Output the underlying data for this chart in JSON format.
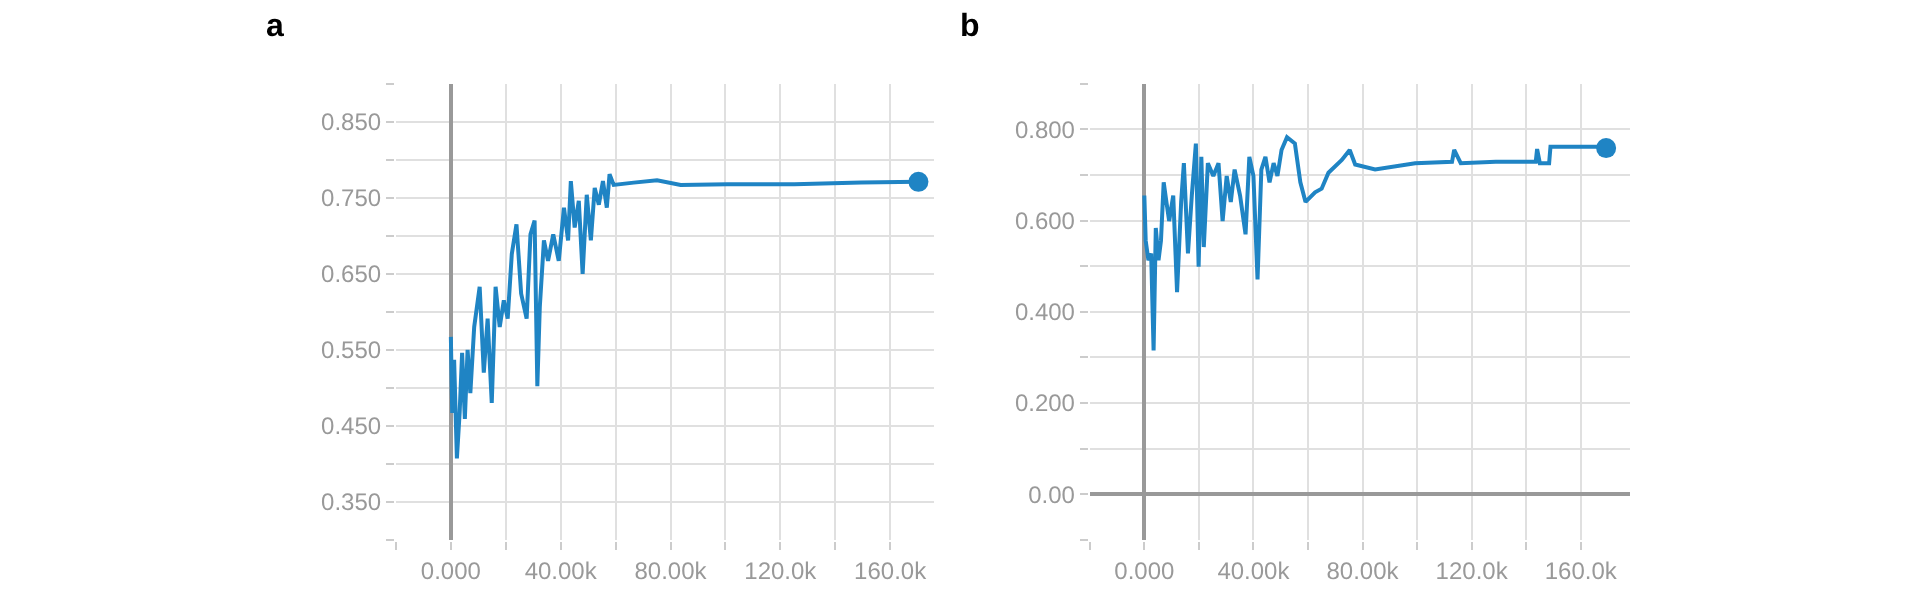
{
  "chart_data": [
    {
      "type": "line",
      "title": "a",
      "grid": true,
      "legend": false,
      "marker": "none",
      "line_style": "solid",
      "xlim": [
        -20000,
        176000
      ],
      "xticks": [
        {
          "value": -20000,
          "label": null
        },
        {
          "value": 0,
          "label": "0.000"
        },
        {
          "value": 20000,
          "label": null
        },
        {
          "value": 40000,
          "label": "40.00k"
        },
        {
          "value": 60000,
          "label": null
        },
        {
          "value": 80000,
          "label": "80.00k"
        },
        {
          "value": 100000,
          "label": null
        },
        {
          "value": 120000,
          "label": "120.0k"
        },
        {
          "value": 140000,
          "label": null
        },
        {
          "value": 160000,
          "label": "160.0k"
        }
      ],
      "ylim": [
        0.3,
        0.9
      ],
      "yticks": [
        {
          "value": 0.3,
          "label": null
        },
        {
          "value": 0.35,
          "label": "0.350"
        },
        {
          "value": 0.4,
          "label": null
        },
        {
          "value": 0.45,
          "label": "0.450"
        },
        {
          "value": 0.5,
          "label": null
        },
        {
          "value": 0.55,
          "label": "0.550"
        },
        {
          "value": 0.6,
          "label": null
        },
        {
          "value": 0.65,
          "label": "0.650"
        },
        {
          "value": 0.7,
          "label": null
        },
        {
          "value": 0.75,
          "label": "0.750"
        },
        {
          "value": 0.8,
          "label": null
        },
        {
          "value": 0.85,
          "label": "0.850"
        },
        {
          "value": 0.9,
          "label": null
        }
      ],
      "series": [
        {
          "color": "#1f84c4",
          "x": [
            0,
            500,
            1200,
            2200,
            3200,
            4100,
            5100,
            6100,
            7100,
            8500,
            10500,
            12000,
            13400,
            14900,
            16300,
            17800,
            19300,
            20700,
            22200,
            23900,
            25600,
            27600,
            29000,
            30500,
            31500,
            32400,
            33900,
            35400,
            37300,
            39300,
            41200,
            42700,
            43700,
            45100,
            46600,
            48000,
            49500,
            51000,
            52400,
            53900,
            55400,
            56800,
            57800,
            59300,
            66600,
            75100,
            83700,
            100700,
            125100,
            149500,
            170300
          ],
          "values": [
            0.567,
            0.467,
            0.537,
            0.407,
            0.467,
            0.546,
            0.459,
            0.55,
            0.493,
            0.58,
            0.633,
            0.52,
            0.591,
            0.48,
            0.633,
            0.58,
            0.615,
            0.591,
            0.676,
            0.715,
            0.624,
            0.591,
            0.702,
            0.72,
            0.502,
            0.607,
            0.694,
            0.667,
            0.702,
            0.667,
            0.737,
            0.694,
            0.772,
            0.711,
            0.746,
            0.65,
            0.754,
            0.694,
            0.763,
            0.741,
            0.772,
            0.737,
            0.781,
            0.767,
            0.77,
            0.773,
            0.767,
            0.768,
            0.768,
            0.77,
            0.771
          ]
        },
        {
          "type": "scatter",
          "marker": "circle",
          "color": "#1f84c4",
          "x": [
            170300
          ],
          "values": [
            0.771
          ]
        }
      ]
    },
    {
      "type": "line",
      "title": "b",
      "grid": true,
      "legend": false,
      "marker": "none",
      "line_style": "solid",
      "xlim": [
        -20000,
        178000
      ],
      "xticks": [
        {
          "value": -20000,
          "label": null
        },
        {
          "value": 0,
          "label": "0.000"
        },
        {
          "value": 20000,
          "label": null
        },
        {
          "value": 40000,
          "label": "40.00k"
        },
        {
          "value": 60000,
          "label": null
        },
        {
          "value": 80000,
          "label": "80.00k"
        },
        {
          "value": 100000,
          "label": null
        },
        {
          "value": 120000,
          "label": "120.0k"
        },
        {
          "value": 140000,
          "label": null
        },
        {
          "value": 160000,
          "label": "160.0k"
        }
      ],
      "ylim": [
        -0.1,
        0.9
      ],
      "yticks": [
        {
          "value": -0.1,
          "label": null
        },
        {
          "value": 0,
          "label": "0.00"
        },
        {
          "value": 0.1,
          "label": null
        },
        {
          "value": 0.2,
          "label": "0.200"
        },
        {
          "value": 0.3,
          "label": null
        },
        {
          "value": 0.4,
          "label": "0.400"
        },
        {
          "value": 0.5,
          "label": null
        },
        {
          "value": 0.6,
          "label": "0.600"
        },
        {
          "value": 0.7,
          "label": null
        },
        {
          "value": 0.8,
          "label": "0.800"
        },
        {
          "value": 0.9,
          "label": null
        }
      ],
      "series": [
        {
          "color": "#1f84c4",
          "x": [
            0,
            500,
            1500,
            2500,
            3400,
            4200,
            5200,
            6100,
            7100,
            8100,
            9100,
            10600,
            12000,
            13500,
            14500,
            16000,
            17400,
            18900,
            19900,
            20900,
            21800,
            23300,
            25300,
            27200,
            28700,
            30200,
            31700,
            33100,
            35100,
            37100,
            38500,
            40000,
            41500,
            42900,
            44400,
            45900,
            47400,
            48800,
            50300,
            52300,
            55200,
            57200,
            59100,
            62600,
            65000,
            67500,
            72400,
            75300,
            77300,
            84600,
            99300,
            112800,
            113600,
            116000,
            128800,
            143500,
            144000,
            145000,
            148400,
            148900,
            168000,
            169300
          ],
          "values": [
            0.655,
            0.556,
            0.513,
            0.528,
            0.315,
            0.584,
            0.513,
            0.556,
            0.684,
            0.641,
            0.599,
            0.655,
            0.443,
            0.641,
            0.726,
            0.528,
            0.655,
            0.769,
            0.499,
            0.74,
            0.542,
            0.726,
            0.698,
            0.726,
            0.599,
            0.698,
            0.641,
            0.712,
            0.655,
            0.57,
            0.74,
            0.698,
            0.471,
            0.712,
            0.74,
            0.684,
            0.726,
            0.698,
            0.755,
            0.783,
            0.769,
            0.684,
            0.641,
            0.662,
            0.67,
            0.705,
            0.733,
            0.755,
            0.723,
            0.712,
            0.726,
            0.729,
            0.755,
            0.726,
            0.729,
            0.729,
            0.757,
            0.726,
            0.726,
            0.762,
            0.762,
            0.759
          ]
        },
        {
          "type": "scatter",
          "marker": "circle",
          "color": "#1f84c4",
          "x": [
            169300
          ],
          "values": [
            0.759
          ]
        }
      ]
    }
  ]
}
